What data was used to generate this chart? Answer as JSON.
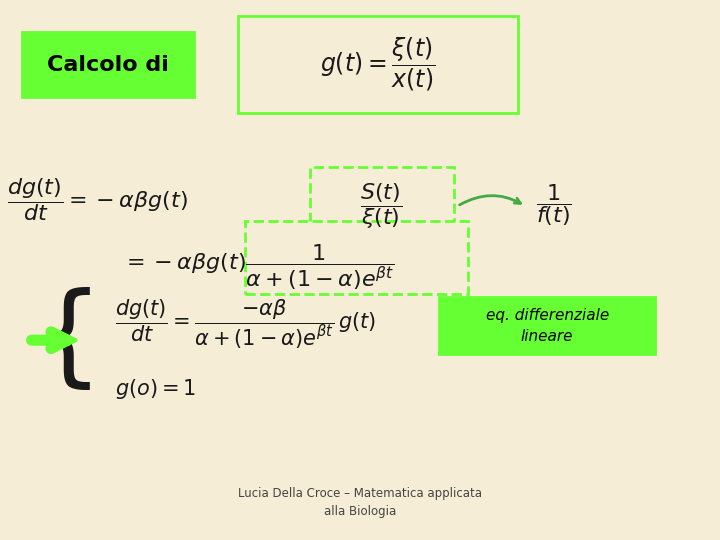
{
  "background_color": "#f5edd6",
  "title_box_text": "Calcolo di",
  "title_box_color": "#66ff33",
  "title_box_bg": "#66ff33",
  "formula_box_color": "#66ff33",
  "eq_box_color": "#66ff33",
  "eq_diff_box_color": "#66ff33",
  "dashed_box_color": "#66ff33",
  "arrow_color": "#66ff33",
  "text_color": "#1a1a1a",
  "footer_text": "Lucia Della Croce – Matematica applicata\nalla Biologia",
  "eq_diff_label": "eq. differenziale\nlineare",
  "math_formulas": {
    "top_formula": "$g(t) = \\dfrac{\\xi(t)}{x(t)}$",
    "line1_left": "$\\dfrac{dg(t)}{dt} = -\\alpha\\beta g(t)$",
    "line1_frac": "$\\dfrac{S(t)}{\\xi(t)}$",
    "line1_right": "$\\dfrac{1}{f(t)}$",
    "line2": "$= -\\alpha\\beta g(t) \\dfrac{1}{\\alpha + (1-\\alpha)e^{\\beta t}}$",
    "line3": "$\\dfrac{dg(t)}{dt} = \\dfrac{-\\alpha\\beta}{\\alpha+(1-\\alpha)e^{\\beta t}}\\, g(t)$",
    "line4": "$g(o) = 1$"
  }
}
